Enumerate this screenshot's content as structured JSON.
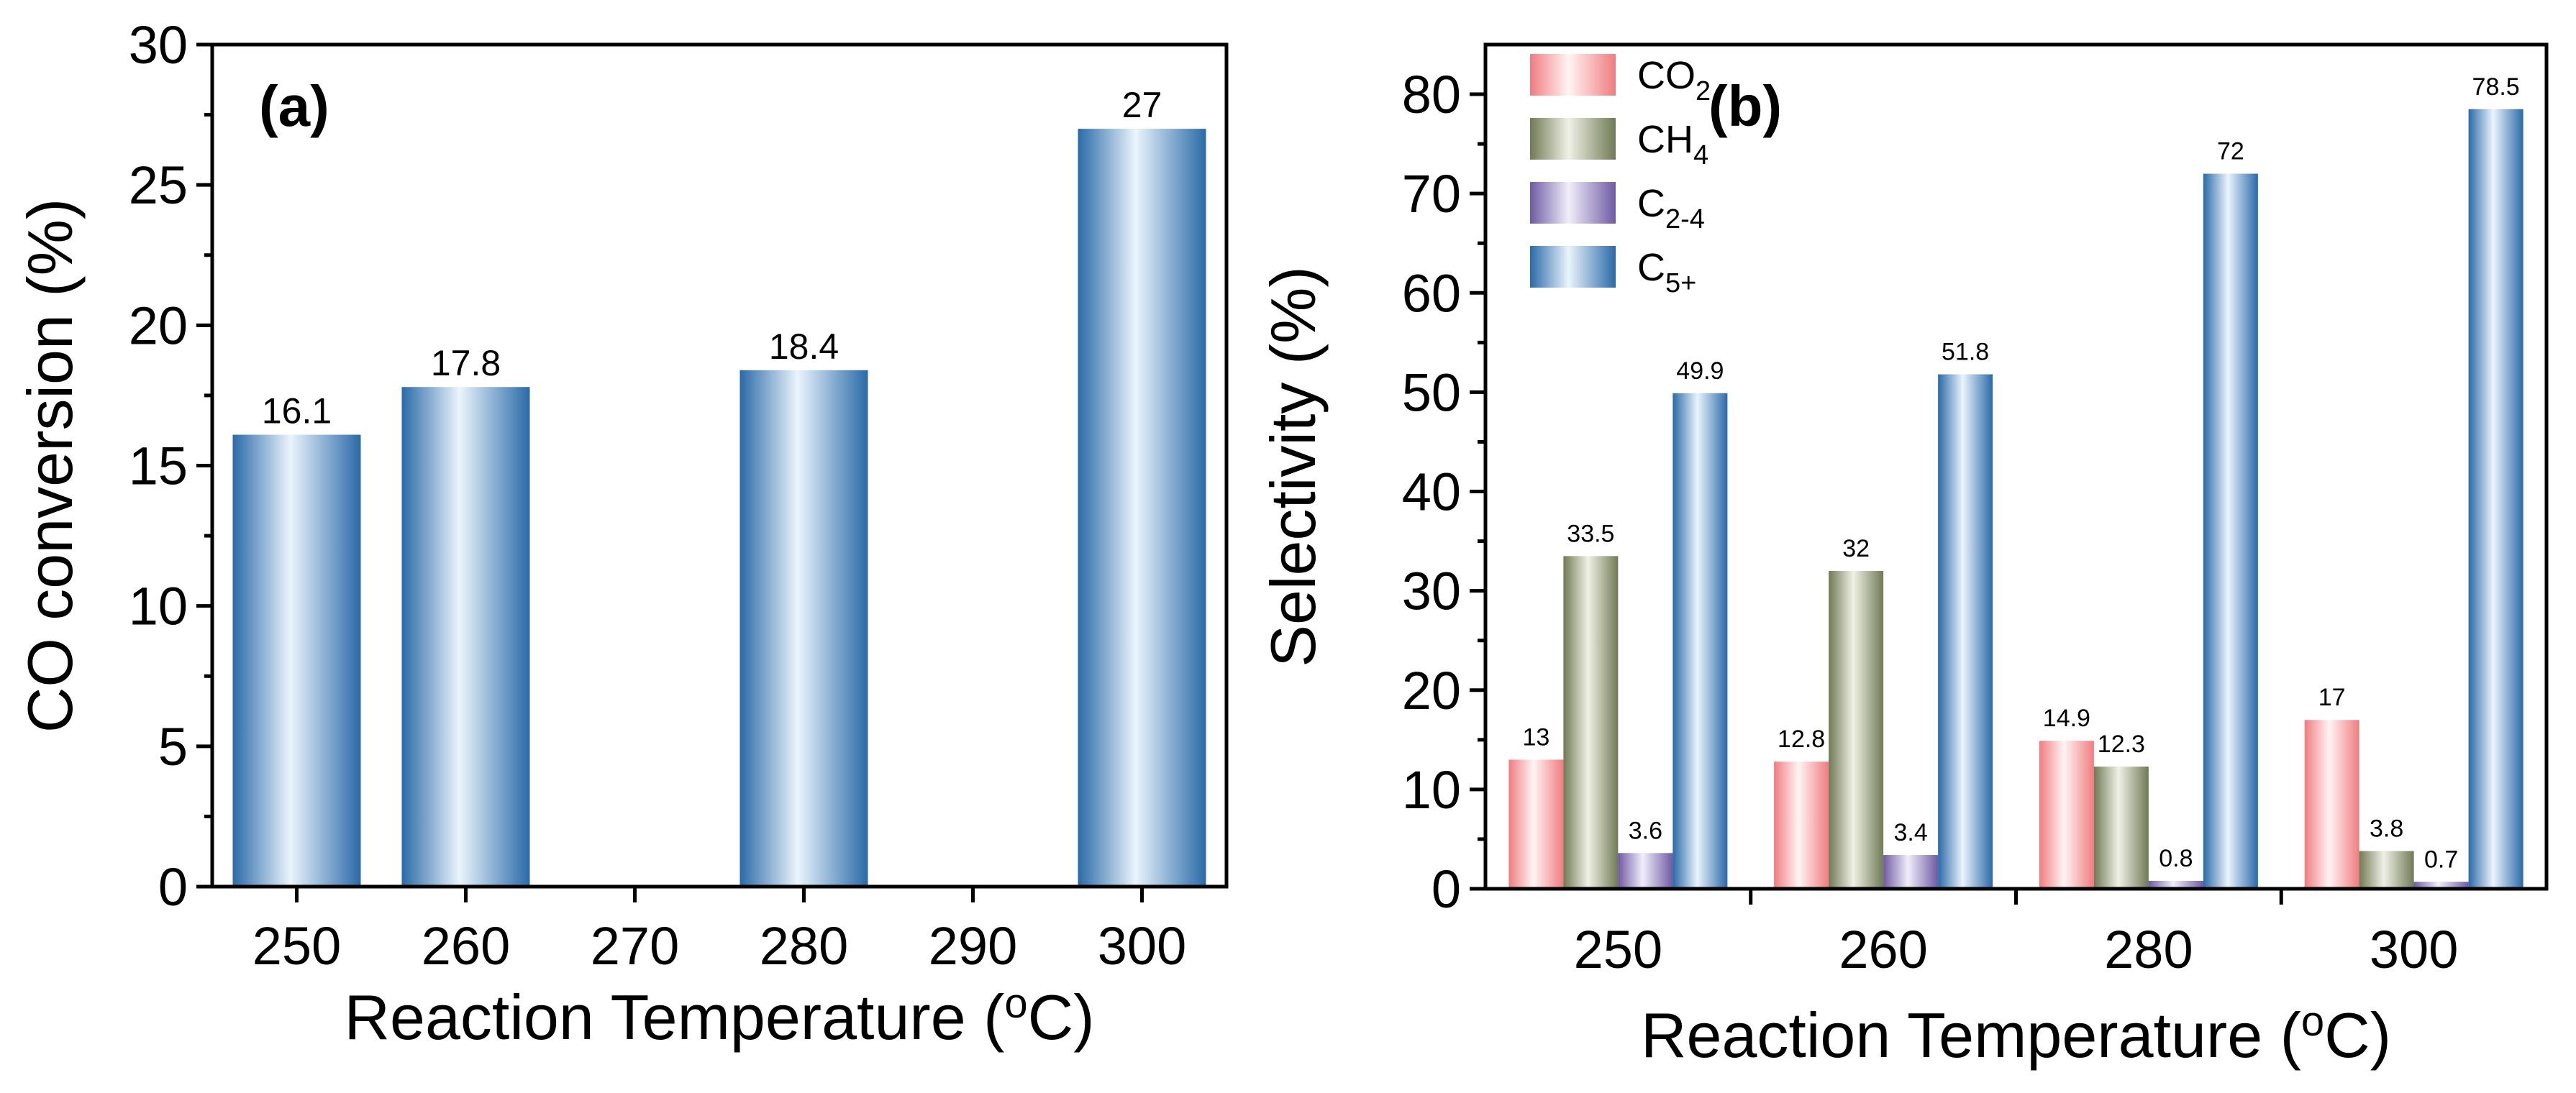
{
  "chart_data": [
    {
      "id": "a",
      "type": "bar",
      "panel_label": "(a)",
      "title": "",
      "xlabel": "Reaction Temperature (",
      "xlabel_sup": "o",
      "xlabel_end": "C)",
      "ylabel": "CO conversion (%)",
      "ylim": [
        0,
        30
      ],
      "yticks": [
        "0",
        "5",
        "10",
        "15",
        "20",
        "25",
        "30"
      ],
      "categories": [
        "250",
        "260",
        "270",
        "280",
        "290",
        "300"
      ],
      "values": [
        16.1,
        17.8,
        null,
        18.4,
        null,
        27
      ],
      "data_labels": [
        "16.1",
        "17.8",
        "",
        "18.4",
        "",
        "27"
      ],
      "grid": false,
      "colors": {
        "edge": "#2a6aa8",
        "center": "#eaf4fc"
      }
    },
    {
      "id": "b",
      "type": "bar",
      "panel_label": "(b)",
      "title": "",
      "xlabel": "Reaction Temperature (",
      "xlabel_sup": "o",
      "xlabel_end": "C)",
      "ylabel": "Selectivity (%)",
      "ylim": [
        0,
        85
      ],
      "yticks": [
        "0",
        "10",
        "20",
        "30",
        "40",
        "50",
        "60",
        "70",
        "80"
      ],
      "categories": [
        "250",
        "260",
        "280",
        "300"
      ],
      "legend_position": "top-left",
      "grid": false,
      "series": [
        {
          "name": "CO",
          "sub": "2",
          "values": [
            13,
            12.8,
            14.9,
            17
          ],
          "labels": [
            "13",
            "12.8",
            "14.9",
            "17"
          ],
          "edge": "#f07c80",
          "center": "#fff4f4"
        },
        {
          "name": "CH",
          "sub": "4",
          "values": [
            33.5,
            32,
            12.3,
            3.8
          ],
          "labels": [
            "33.5",
            "32",
            "12.3",
            "3.8"
          ],
          "edge": "#707a55",
          "center": "#f0f1e6"
        },
        {
          "name": "C",
          "sub": "2-4",
          "values": [
            3.6,
            3.4,
            0.8,
            0.7
          ],
          "labels": [
            "3.6",
            "3.4",
            "0.8",
            "0.7"
          ],
          "edge": "#6f5aa3",
          "center": "#f1eef9"
        },
        {
          "name": "C",
          "sub": "5+",
          "values": [
            49.9,
            51.8,
            72,
            78.5
          ],
          "labels": [
            "49.9",
            "51.8",
            "72",
            "78.5"
          ],
          "edge": "#2a6aa8",
          "center": "#eaf4fc"
        }
      ]
    }
  ]
}
